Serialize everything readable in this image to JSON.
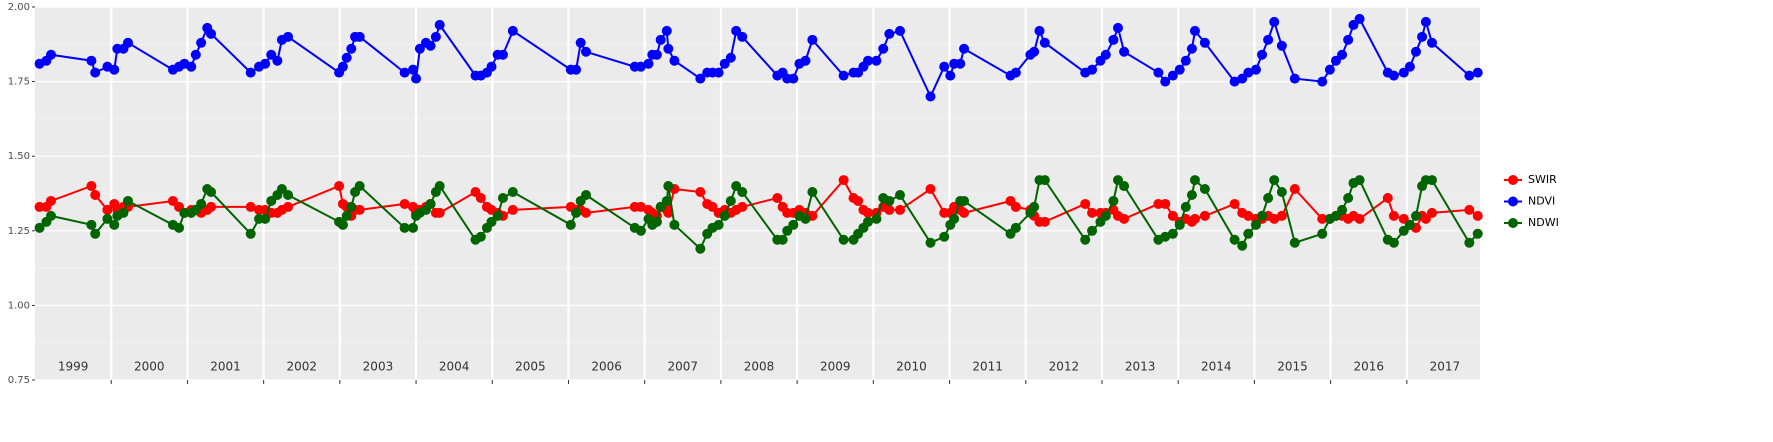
{
  "chart_data": {
    "type": "line",
    "x": [
      1999.06,
      1999.15,
      1999.21,
      1999.74,
      1999.79,
      1999.95,
      2000.04,
      2000.08,
      2000.16,
      2000.22,
      2000.81,
      2000.89,
      2000.96,
      2001.05,
      2001.11,
      2001.18,
      2001.26,
      2001.31,
      2001.83,
      2001.94,
      2002.02,
      2002.1,
      2002.18,
      2002.24,
      2002.32,
      2002.99,
      2003.04,
      2003.09,
      2003.15,
      2003.2,
      2003.26,
      2003.85,
      2003.96,
      2004.0,
      2004.05,
      2004.13,
      2004.19,
      2004.26,
      2004.31,
      2004.78,
      2004.85,
      2004.93,
      2004.99,
      2005.07,
      2005.14,
      2005.27,
      2006.03,
      2006.1,
      2006.16,
      2006.23,
      2006.87,
      2006.95,
      2007.05,
      2007.1,
      2007.16,
      2007.21,
      2007.29,
      2007.31,
      2007.39,
      2007.73,
      2007.82,
      2007.89,
      2007.97,
      2008.05,
      2008.13,
      2008.2,
      2008.28,
      2008.74,
      2008.81,
      2008.87,
      2008.95,
      2009.03,
      2009.11,
      2009.2,
      2009.61,
      2009.74,
      2009.8,
      2009.87,
      2009.93,
      2010.04,
      2010.13,
      2010.21,
      2010.35,
      2010.75,
      2010.93,
      2011.01,
      2011.06,
      2011.14,
      2011.19,
      2011.8,
      2011.87,
      2012.06,
      2012.11,
      2012.18,
      2012.25,
      2012.78,
      2012.87,
      2012.98,
      2013.05,
      2013.15,
      2013.21,
      2013.29,
      2013.74,
      2013.83,
      2013.93,
      2014.02,
      2014.1,
      2014.18,
      2014.22,
      2014.35,
      2014.74,
      2014.84,
      2014.92,
      2015.02,
      2015.1,
      2015.18,
      2015.26,
      2015.36,
      2015.53,
      2015.89,
      2015.99,
      2016.07,
      2016.15,
      2016.23,
      2016.3,
      2016.38,
      2016.75,
      2016.83,
      2016.96,
      2017.04,
      2017.12,
      2017.2,
      2017.25,
      2017.33,
      2017.82,
      2017.93
    ],
    "series": [
      {
        "name": "SWIR",
        "color": "#ff0000",
        "values": [
          1.33,
          1.33,
          1.35,
          1.4,
          1.37,
          1.32,
          1.34,
          1.32,
          1.33,
          1.33,
          1.35,
          1.33,
          1.31,
          1.32,
          1.32,
          1.31,
          1.32,
          1.33,
          1.33,
          1.32,
          1.32,
          1.31,
          1.31,
          1.32,
          1.33,
          1.4,
          1.34,
          1.33,
          1.3,
          1.32,
          1.32,
          1.34,
          1.33,
          1.31,
          1.32,
          1.33,
          1.34,
          1.31,
          1.31,
          1.38,
          1.36,
          1.33,
          1.32,
          1.31,
          1.3,
          1.32,
          1.33,
          1.32,
          1.32,
          1.31,
          1.33,
          1.33,
          1.32,
          1.31,
          1.3,
          1.33,
          1.32,
          1.31,
          1.39,
          1.38,
          1.34,
          1.33,
          1.31,
          1.32,
          1.31,
          1.32,
          1.33,
          1.36,
          1.33,
          1.31,
          1.31,
          1.32,
          1.31,
          1.3,
          1.42,
          1.36,
          1.35,
          1.32,
          1.31,
          1.31,
          1.33,
          1.32,
          1.32,
          1.39,
          1.31,
          1.31,
          1.33,
          1.32,
          1.31,
          1.35,
          1.33,
          1.32,
          1.3,
          1.28,
          1.28,
          1.34,
          1.31,
          1.31,
          1.31,
          1.32,
          1.3,
          1.29,
          1.34,
          1.34,
          1.3,
          1.28,
          1.29,
          1.28,
          1.29,
          1.3,
          1.34,
          1.31,
          1.3,
          1.29,
          1.29,
          1.3,
          1.29,
          1.3,
          1.39,
          1.29,
          1.29,
          1.3,
          1.3,
          1.29,
          1.3,
          1.29,
          1.36,
          1.3,
          1.29,
          1.27,
          1.26,
          1.3,
          1.29,
          1.31,
          1.32,
          1.3
        ]
      },
      {
        "name": "NDVI",
        "color": "#0000ff",
        "values": [
          1.81,
          1.82,
          1.84,
          1.82,
          1.78,
          1.8,
          1.79,
          1.86,
          1.86,
          1.88,
          1.79,
          1.8,
          1.81,
          1.8,
          1.84,
          1.88,
          1.93,
          1.91,
          1.78,
          1.8,
          1.81,
          1.84,
          1.82,
          1.89,
          1.9,
          1.78,
          1.8,
          1.83,
          1.86,
          1.9,
          1.9,
          1.78,
          1.79,
          1.76,
          1.86,
          1.88,
          1.87,
          1.9,
          1.94,
          1.77,
          1.77,
          1.78,
          1.8,
          1.84,
          1.84,
          1.92,
          1.79,
          1.79,
          1.88,
          1.85,
          1.8,
          1.8,
          1.81,
          1.84,
          1.84,
          1.89,
          1.92,
          1.86,
          1.82,
          1.76,
          1.78,
          1.78,
          1.78,
          1.81,
          1.83,
          1.92,
          1.9,
          1.77,
          1.78,
          1.76,
          1.76,
          1.81,
          1.82,
          1.89,
          1.77,
          1.78,
          1.78,
          1.8,
          1.82,
          1.82,
          1.86,
          1.91,
          1.92,
          1.7,
          1.8,
          1.77,
          1.81,
          1.81,
          1.86,
          1.77,
          1.78,
          1.84,
          1.85,
          1.92,
          1.88,
          1.78,
          1.79,
          1.82,
          1.84,
          1.89,
          1.93,
          1.85,
          1.78,
          1.75,
          1.77,
          1.79,
          1.82,
          1.86,
          1.92,
          1.88,
          1.75,
          1.76,
          1.78,
          1.79,
          1.84,
          1.89,
          1.95,
          1.87,
          1.76,
          1.75,
          1.79,
          1.82,
          1.84,
          1.89,
          1.94,
          1.96,
          1.78,
          1.77,
          1.78,
          1.8,
          1.85,
          1.9,
          1.95,
          1.88,
          1.77,
          1.78
        ]
      },
      {
        "name": "NDWI",
        "color": "#006400",
        "values": [
          1.26,
          1.28,
          1.3,
          1.27,
          1.24,
          1.29,
          1.27,
          1.3,
          1.31,
          1.35,
          1.27,
          1.26,
          1.31,
          1.31,
          1.32,
          1.34,
          1.39,
          1.38,
          1.24,
          1.29,
          1.29,
          1.35,
          1.37,
          1.39,
          1.37,
          1.28,
          1.27,
          1.3,
          1.33,
          1.38,
          1.4,
          1.26,
          1.26,
          1.3,
          1.31,
          1.32,
          1.34,
          1.38,
          1.4,
          1.22,
          1.23,
          1.26,
          1.28,
          1.3,
          1.36,
          1.38,
          1.27,
          1.31,
          1.35,
          1.37,
          1.26,
          1.25,
          1.29,
          1.27,
          1.28,
          1.33,
          1.35,
          1.4,
          1.27,
          1.19,
          1.24,
          1.26,
          1.27,
          1.3,
          1.35,
          1.4,
          1.38,
          1.22,
          1.22,
          1.25,
          1.27,
          1.3,
          1.29,
          1.38,
          1.22,
          1.22,
          1.24,
          1.26,
          1.28,
          1.29,
          1.36,
          1.35,
          1.37,
          1.21,
          1.23,
          1.27,
          1.29,
          1.35,
          1.35,
          1.24,
          1.26,
          1.31,
          1.33,
          1.42,
          1.42,
          1.22,
          1.25,
          1.28,
          1.3,
          1.35,
          1.42,
          1.4,
          1.22,
          1.23,
          1.24,
          1.27,
          1.33,
          1.37,
          1.42,
          1.39,
          1.22,
          1.2,
          1.24,
          1.27,
          1.3,
          1.36,
          1.42,
          1.38,
          1.21,
          1.24,
          1.29,
          1.3,
          1.32,
          1.36,
          1.41,
          1.42,
          1.22,
          1.21,
          1.25,
          1.27,
          1.3,
          1.4,
          1.42,
          1.42,
          1.21,
          1.24
        ]
      }
    ],
    "xlim": [
      1999.0,
      2017.96
    ],
    "xticks": [
      2000,
      2001,
      2002,
      2003,
      2004,
      2005,
      2006,
      2007,
      2008,
      2009,
      2010,
      2011,
      2012,
      2013,
      2014,
      2015,
      2016,
      2017
    ],
    "x_labels": [
      {
        "value": 1999.5,
        "label": "1999"
      },
      {
        "value": 2000.5,
        "label": "2000"
      },
      {
        "value": 2001.5,
        "label": "2001"
      },
      {
        "value": 2002.5,
        "label": "2002"
      },
      {
        "value": 2003.5,
        "label": "2003"
      },
      {
        "value": 2004.5,
        "label": "2004"
      },
      {
        "value": 2005.5,
        "label": "2005"
      },
      {
        "value": 2006.5,
        "label": "2006"
      },
      {
        "value": 2007.5,
        "label": "2007"
      },
      {
        "value": 2008.5,
        "label": "2008"
      },
      {
        "value": 2009.5,
        "label": "2009"
      },
      {
        "value": 2010.5,
        "label": "2010"
      },
      {
        "value": 2011.5,
        "label": "2011"
      },
      {
        "value": 2012.5,
        "label": "2012"
      },
      {
        "value": 2013.5,
        "label": "2013"
      },
      {
        "value": 2014.5,
        "label": "2014"
      },
      {
        "value": 2015.5,
        "label": "2015"
      },
      {
        "value": 2016.5,
        "label": "2016"
      },
      {
        "value": 2017.5,
        "label": "2017"
      }
    ],
    "ylim": [
      0.75,
      2.0
    ],
    "yticks": [
      {
        "value": 0.75,
        "label": "0.75"
      },
      {
        "value": 1,
        "label": "1.00"
      },
      {
        "value": 1.25,
        "label": "1.25"
      },
      {
        "value": 1.5,
        "label": "1.50"
      },
      {
        "value": 1.75,
        "label": "1.75"
      },
      {
        "value": 2,
        "label": "2.00"
      }
    ],
    "yminor": [
      0.875,
      1.125,
      1.375,
      1.625,
      1.875
    ],
    "grid": true,
    "legend": "right"
  }
}
